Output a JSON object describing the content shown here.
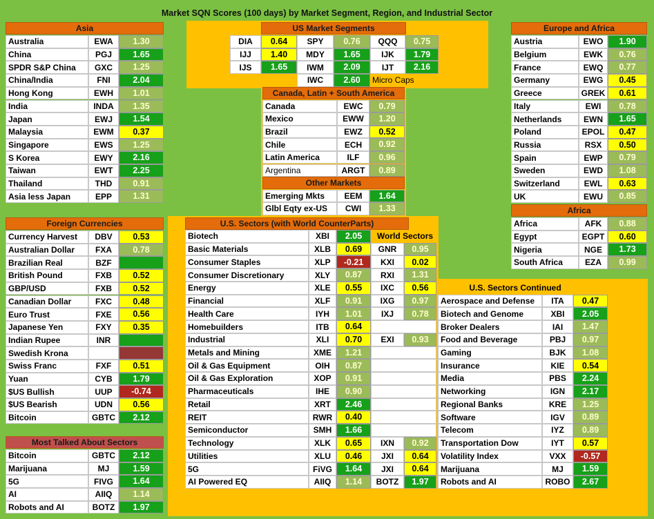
{
  "title": "Market SQN Scores (100 days) by Market Segment, Region, and Industrial Sector",
  "asia": {
    "title": "Asia",
    "header_color": "#e46c0a",
    "rows": [
      {
        "name": "Australia",
        "ticker": "EWA",
        "value": "1.30",
        "color": "#9bbb59"
      },
      {
        "name": "China",
        "ticker": "PGJ",
        "value": "1.65",
        "color": "#17a01a"
      },
      {
        "name": "SPDR S&P China",
        "ticker": "GXC",
        "value": "1.25",
        "color": "#9bbb59"
      },
      {
        "name": "China/India",
        "ticker": "FNI",
        "value": "2.04",
        "color": "#17a01a"
      },
      {
        "name": "Hong Kong",
        "ticker": "EWH",
        "value": "1.01",
        "color": "#9bbb59"
      },
      {
        "name": "India",
        "ticker": "INDA",
        "value": "1.35",
        "color": "#9bbb59"
      },
      {
        "name": "Japan",
        "ticker": "EWJ",
        "value": "1.54",
        "color": "#17a01a"
      },
      {
        "name": "Malaysia",
        "ticker": "EWM",
        "value": "0.37",
        "color": "#ffff00"
      },
      {
        "name": "Singapore",
        "ticker": "EWS",
        "value": "1.25",
        "color": "#9bbb59"
      },
      {
        "name": "S Korea",
        "ticker": "EWY",
        "value": "2.16",
        "color": "#17a01a"
      },
      {
        "name": "Taiwan",
        "ticker": "EWT",
        "value": "2.25",
        "color": "#17a01a"
      },
      {
        "name": "Thailand",
        "ticker": "THD",
        "value": "0.91",
        "color": "#9bbb59"
      },
      {
        "name": "Asia less Japan",
        "ticker": "EPP",
        "value": "1.31",
        "color": "#9bbb59"
      }
    ]
  },
  "europe_africa": {
    "title": "Europe and Africa",
    "header_color": "#e46c0a",
    "rows": [
      {
        "name": "Austria",
        "ticker": "EWO",
        "value": "1.90",
        "color": "#17a01a"
      },
      {
        "name": "Belgium",
        "ticker": "EWK",
        "value": "0.76",
        "color": "#9bbb59"
      },
      {
        "name": "France",
        "ticker": "EWQ",
        "value": "0.77",
        "color": "#9bbb59"
      },
      {
        "name": "Germany",
        "ticker": "EWG",
        "value": "0.45",
        "color": "#ffff00"
      },
      {
        "name": "Greece",
        "ticker": "GREK",
        "value": "0.61",
        "color": "#ffff00"
      },
      {
        "name": "Italy",
        "ticker": "EWI",
        "value": "0.78",
        "color": "#9bbb59"
      },
      {
        "name": "Netherlands",
        "ticker": "EWN",
        "value": "1.65",
        "color": "#17a01a"
      },
      {
        "name": "Poland",
        "ticker": "EPOL",
        "value": "0.47",
        "color": "#ffff00"
      },
      {
        "name": "Russia",
        "ticker": "RSX",
        "value": "0.50",
        "color": "#ffff00"
      },
      {
        "name": "Spain",
        "ticker": "EWP",
        "value": "0.79",
        "color": "#9bbb59"
      },
      {
        "name": "Sweden",
        "ticker": "EWD",
        "value": "1.08",
        "color": "#9bbb59"
      },
      {
        "name": "Switzerland",
        "ticker": "EWL",
        "value": "0.63",
        "color": "#ffff00"
      },
      {
        "name": "UK",
        "ticker": "EWU",
        "value": "0.85",
        "color": "#9bbb59"
      }
    ]
  },
  "africa": {
    "title": "Africa",
    "header_color": "#e46c0a",
    "rows": [
      {
        "name": "Africa",
        "ticker": "AFK",
        "value": "0.88",
        "color": "#9bbb59"
      },
      {
        "name": "Egypt",
        "ticker": "EGPT",
        "value": "0.60",
        "color": "#ffff00"
      },
      {
        "name": "Nigeria",
        "ticker": "NGE",
        "value": "1.73",
        "color": "#17a01a"
      },
      {
        "name": "South Africa",
        "ticker": "EZA",
        "value": "0.99",
        "color": "#9bbb59"
      }
    ]
  },
  "foreign_currencies": {
    "title": "Foreign Currencies",
    "header_color": "#e46c0a",
    "rows": [
      {
        "name": "Currency Harvest",
        "ticker": "DBV",
        "value": "0.53",
        "color": "#ffff00"
      },
      {
        "name": "Australian Dollar",
        "ticker": "FXA",
        "value": "0.78",
        "color": "#9bbb59"
      },
      {
        "name": "Brazilian Real",
        "ticker": "BZF",
        "value": null,
        "color": "#17a01a"
      },
      {
        "name": "British Pound",
        "ticker": "FXB",
        "value": "0.52",
        "color": "#ffff00"
      },
      {
        "name": "GBP/USD",
        "ticker": "FXB",
        "value": "0.52",
        "color": "#ffff00"
      },
      {
        "name": "Canadian Dollar",
        "ticker": "FXC",
        "value": "0.48",
        "color": "#ffff00"
      },
      {
        "name": "Euro Trust",
        "ticker": "FXE",
        "value": "0.56",
        "color": "#ffff00"
      },
      {
        "name": "Japanese Yen",
        "ticker": "FXY",
        "value": "0.35",
        "color": "#ffff00"
      },
      {
        "name": "Indian Rupee",
        "ticker": "INR",
        "value": null,
        "color": "#17a01a"
      },
      {
        "name": "Swedish Krona",
        "ticker": null,
        "value": null,
        "color": "#953735"
      },
      {
        "name": "Swiss Franc",
        "ticker": "FXF",
        "value": "0.51",
        "color": "#ffff00"
      },
      {
        "name": "Yuan",
        "ticker": "CYB",
        "value": "1.79",
        "color": "#17a01a"
      },
      {
        "name": "$US Bullish",
        "ticker": "UUP",
        "value": "-0.74",
        "color": "#b0281e"
      },
      {
        "name": "$US Bearish",
        "ticker": "UDN",
        "value": "0.56",
        "color": "#ffff00"
      },
      {
        "name": "Bitcoin",
        "ticker": "GBTC",
        "value": "2.12",
        "color": "#17a01a"
      }
    ]
  },
  "most_talked": {
    "title": "Most Talked About Sectors",
    "header_color": "#c0504d",
    "rows": [
      {
        "name": "Bitcoin",
        "ticker": "GBTC",
        "value": "2.12",
        "color": "#17a01a"
      },
      {
        "name": "Marijuana",
        "ticker": "MJ",
        "value": "1.59",
        "color": "#17a01a"
      },
      {
        "name": "5G",
        "ticker": "FIVG",
        "value": "1.64",
        "color": "#17a01a"
      },
      {
        "name": "AI",
        "ticker": "AIIQ",
        "value": "1.14",
        "color": "#9bbb59"
      },
      {
        "name": "Robots and AI",
        "ticker": "BOTZ",
        "value": "1.97",
        "color": "#17a01a"
      }
    ]
  },
  "us_market_segments": {
    "title": "US Market Segments",
    "header_color": "#e46c0a",
    "rows": [
      [
        {
          "ticker": "DIA",
          "value": "0.64",
          "color": "#ffff00"
        },
        {
          "ticker": "SPY",
          "value": "0.76",
          "color": "#9bbb59"
        },
        {
          "ticker": "QQQ",
          "value": "0.75",
          "color": "#9bbb59"
        }
      ],
      [
        {
          "ticker": "IJJ",
          "value": "1.40",
          "color": "#ffff00"
        },
        {
          "ticker": "MDY",
          "value": "1.65",
          "color": "#17a01a"
        },
        {
          "ticker": "IJK",
          "value": "1.79",
          "color": "#17a01a"
        }
      ],
      [
        {
          "ticker": "IJS",
          "value": "1.65",
          "color": "#17a01a"
        },
        {
          "ticker": "IWM",
          "value": "2.09",
          "color": "#17a01a"
        },
        {
          "ticker": "IJT",
          "value": "2.16",
          "color": "#17a01a"
        }
      ]
    ],
    "micro_caps": {
      "ticker": "IWC",
      "value": "2.60",
      "color": "#17a01a",
      "note": "Micro Caps"
    }
  },
  "canada_latin_south_america": {
    "title": "Canada, Latin + South America",
    "header_color": "#e46c0a",
    "rows": [
      {
        "name": "Canada",
        "ticker": "EWC",
        "value": "0.79",
        "color": "#9bbb59"
      },
      {
        "name": "Mexico",
        "ticker": "EWW",
        "value": "1.20",
        "color": "#9bbb59"
      },
      {
        "name": "Brazil",
        "ticker": "EWZ",
        "value": "0.52",
        "color": "#ffff00"
      },
      {
        "name": "Chile",
        "ticker": "ECH",
        "value": "0.92",
        "color": "#9bbb59"
      },
      {
        "name": "Latin America",
        "ticker": "ILF",
        "value": "0.96",
        "color": "#9bbb59"
      },
      {
        "name": "Argentina",
        "ticker": "ARGT",
        "value": "0.89",
        "color": "#9bbb59"
      }
    ]
  },
  "other_markets": {
    "title": "Other Markets",
    "header_color": "#e46c0a",
    "rows": [
      {
        "name": "Emerging Mkts",
        "ticker": "EEM",
        "value": "1.64",
        "color": "#17a01a"
      },
      {
        "name": "Glbl Eqty ex-US",
        "ticker": "CWI",
        "value": "1.33",
        "color": "#9bbb59"
      }
    ]
  },
  "us_sectors": {
    "title": "U.S. Sectors (with World CounterParts)",
    "header_color": "#e46c0a",
    "world_header": "World Sectors",
    "rows": [
      {
        "name": "Biotech",
        "ticker": "XBI",
        "value": "2.05",
        "color": "#17a01a",
        "world": null
      },
      {
        "name": "Basic Materials",
        "ticker": "XLB",
        "value": "0.69",
        "color": "#ffff00",
        "world": {
          "ticker": "GNR",
          "value": "0.95",
          "color": "#9bbb59"
        }
      },
      {
        "name": "Consumer Staples",
        "ticker": "XLP",
        "value": "-0.21",
        "color": "#b0281e",
        "world": {
          "ticker": "KXI",
          "value": "0.02",
          "color": "#ffff00"
        }
      },
      {
        "name": "Consumer Discretionary",
        "ticker": "XLY",
        "value": "0.87",
        "color": "#9bbb59",
        "world": {
          "ticker": "RXI",
          "value": "1.31",
          "color": "#9bbb59"
        }
      },
      {
        "name": "Energy",
        "ticker": "XLE",
        "value": "0.55",
        "color": "#ffff00",
        "world": {
          "ticker": "IXC",
          "value": "0.56",
          "color": "#ffff00"
        }
      },
      {
        "name": "Financial",
        "ticker": "XLF",
        "value": "0.91",
        "color": "#9bbb59",
        "world": {
          "ticker": "IXG",
          "value": "0.97",
          "color": "#9bbb59"
        }
      },
      {
        "name": "Health Care",
        "ticker": "IYH",
        "value": "1.01",
        "color": "#9bbb59",
        "world": {
          "ticker": "IXJ",
          "value": "0.78",
          "color": "#9bbb59"
        }
      },
      {
        "name": "Homebuilders",
        "ticker": "ITB",
        "value": "0.64",
        "color": "#ffff00",
        "world": null
      },
      {
        "name": "Industrial",
        "ticker": "XLI",
        "value": "0.70",
        "color": "#ffff00",
        "world": {
          "ticker": "EXI",
          "value": "0.93",
          "color": "#9bbb59"
        }
      },
      {
        "name": "Metals and Mining",
        "ticker": "XME",
        "value": "1.21",
        "color": "#9bbb59",
        "world": null
      },
      {
        "name": "Oil & Gas Equipment",
        "ticker": "OIH",
        "value": "0.87",
        "color": "#9bbb59",
        "world": null
      },
      {
        "name": "Oil & Gas Exploration",
        "ticker": "XOP",
        "value": "0.91",
        "color": "#9bbb59",
        "world": null
      },
      {
        "name": "Pharmaceuticals",
        "ticker": "IHE",
        "value": "0.90",
        "color": "#9bbb59",
        "world": null
      },
      {
        "name": "Retail",
        "ticker": "XRT",
        "value": "2.46",
        "color": "#17a01a",
        "world": null
      },
      {
        "name": "REIT",
        "ticker": "RWR",
        "value": "0.40",
        "color": "#ffff00",
        "world": null
      },
      {
        "name": "Semiconductor",
        "ticker": "SMH",
        "value": "1.66",
        "color": "#17a01a",
        "world": null
      },
      {
        "name": "Technology",
        "ticker": "XLK",
        "value": "0.65",
        "color": "#ffff00",
        "world": {
          "ticker": "IXN",
          "value": "0.92",
          "color": "#9bbb59"
        }
      },
      {
        "name": "Utilities",
        "ticker": "XLU",
        "value": "0.46",
        "color": "#ffff00",
        "world": {
          "ticker": "JXI",
          "value": "0.64",
          "color": "#ffff00"
        }
      },
      {
        "name": "5G",
        "ticker": "FiVG",
        "value": "1.64",
        "color": "#17a01a",
        "world": {
          "ticker": "JXI",
          "value": "0.64",
          "color": "#ffff00"
        }
      },
      {
        "name": "AI Powered EQ",
        "ticker": "AIIQ",
        "value": "1.14",
        "color": "#9bbb59",
        "world": {
          "ticker": "BOTZ",
          "value": "1.97",
          "color": "#17a01a"
        }
      }
    ]
  },
  "us_sectors_continued": {
    "title": "U.S. Sectors Continued",
    "rows": [
      {
        "name": "Aerospace and Defense",
        "ticker": "ITA",
        "value": "0.47",
        "color": "#ffff00"
      },
      {
        "name": "Biotech and Genome",
        "ticker": "XBI",
        "value": "2.05",
        "color": "#17a01a"
      },
      {
        "name": "Broker Dealers",
        "ticker": "IAI",
        "value": "1.47",
        "color": "#9bbb59"
      },
      {
        "name": "Food and Beverage",
        "ticker": "PBJ",
        "value": "0.97",
        "color": "#9bbb59"
      },
      {
        "name": "Gaming",
        "ticker": "BJK",
        "value": "1.08",
        "color": "#9bbb59"
      },
      {
        "name": "Insurance",
        "ticker": "KIE",
        "value": "0.54",
        "color": "#ffff00"
      },
      {
        "name": "Media",
        "ticker": "PBS",
        "value": "2.24",
        "color": "#17a01a"
      },
      {
        "name": "Networking",
        "ticker": "IGN",
        "value": "2.17",
        "color": "#17a01a"
      },
      {
        "name": "Regional Banks",
        "ticker": "KRE",
        "value": "1.25",
        "color": "#9bbb59"
      },
      {
        "name": "Software",
        "ticker": "IGV",
        "value": "0.89",
        "color": "#9bbb59"
      },
      {
        "name": "Telecom",
        "ticker": "IYZ",
        "value": "0.89",
        "color": "#9bbb59"
      },
      {
        "name": "Transportation Dow",
        "ticker": "IYT",
        "value": "0.57",
        "color": "#ffff00"
      },
      {
        "name": "Volatility Index",
        "ticker": "VXX",
        "value": "-0.57",
        "color": "#b0281e"
      },
      {
        "name": "Marijuana",
        "ticker": "MJ",
        "value": "1.59",
        "color": "#17a01a"
      },
      {
        "name": "Robots and AI",
        "ticker": "ROBO",
        "value": "2.67",
        "color": "#17a01a"
      }
    ]
  }
}
